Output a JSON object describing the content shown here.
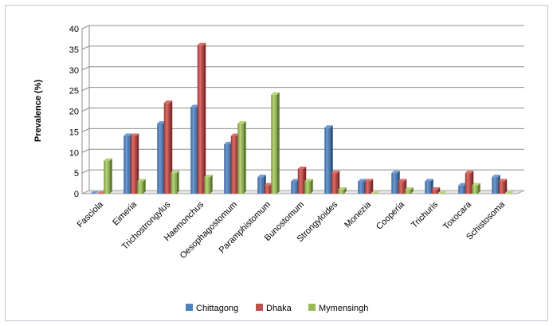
{
  "chart_data": {
    "type": "bar",
    "ylabel": "Prevalence (%)",
    "xlabel": "",
    "ylim": [
      0,
      40
    ],
    "yticks": [
      0,
      5,
      10,
      15,
      20,
      25,
      30,
      35,
      40
    ],
    "grid": true,
    "legend_position": "bottom",
    "categories": [
      "Fasciola",
      "Eimeria",
      "Trichostrongylus",
      "Haemonchus",
      "Oesophagostomum",
      "Paramphistomum",
      "Bunostomum",
      "Strongyloides",
      "Monezia",
      "Cooperia",
      "Trichuris",
      "Toxocara",
      "Schistosoma"
    ],
    "series": [
      {
        "name": "Chittagong",
        "color": "#4f81bd",
        "values": [
          0,
          14,
          17,
          21,
          12,
          4,
          3,
          16,
          3,
          5,
          3,
          2,
          4
        ]
      },
      {
        "name": "Dhaka",
        "color": "#c0504d",
        "values": [
          0,
          14,
          22,
          36,
          14,
          2,
          6,
          5,
          3,
          3,
          1,
          5,
          3
        ]
      },
      {
        "name": "Mymensingh",
        "color": "#9bbb59",
        "values": [
          8,
          3,
          5,
          4,
          17,
          24,
          3,
          1,
          0,
          1,
          0,
          2,
          0
        ]
      }
    ]
  }
}
